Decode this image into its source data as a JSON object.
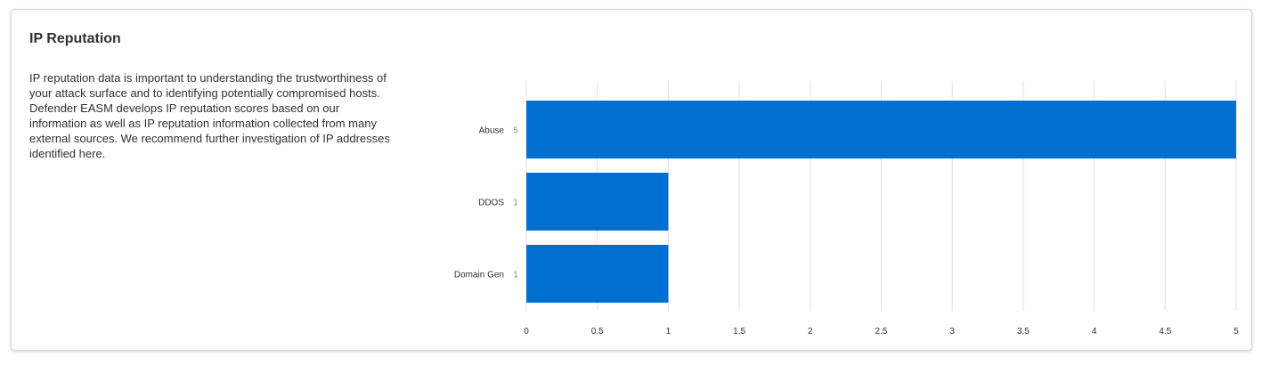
{
  "card": {
    "title": "IP Reputation",
    "description": "IP reputation data is important to understanding the trustworthiness of your attack surface and to identifying potentially compromised hosts. Defender EASM develops IP reputation scores based on our information as well as IP reputation information collected from many external sources. We recommend further investigation of IP addresses identified here."
  },
  "chart_data": {
    "type": "bar",
    "orientation": "horizontal",
    "categories": [
      "Abuse",
      "DDOS",
      "Domain Gen"
    ],
    "values": [
      5,
      1,
      1
    ],
    "xlim": [
      0,
      5
    ],
    "xticks": [
      "0",
      "0.5",
      "1",
      "1.5",
      "2",
      "2.5",
      "3",
      "3.5",
      "4",
      "4.5",
      "5"
    ],
    "grid": true,
    "bar_color": "#0070d0",
    "grid_color": "#e1e1e1"
  }
}
